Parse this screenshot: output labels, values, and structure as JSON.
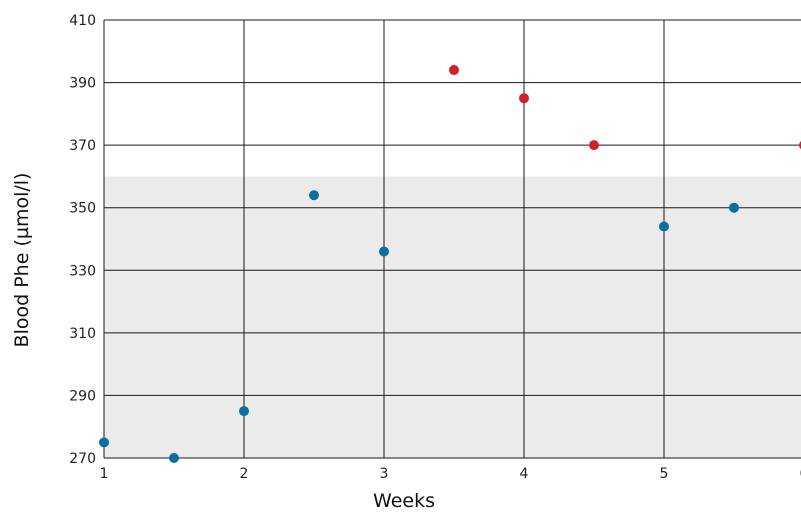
{
  "chart_data": {
    "type": "scatter",
    "title": "",
    "xlabel": "Weeks",
    "ylabel": "Blood Phe (µmol/l)",
    "xlim": [
      1,
      6
    ],
    "ylim": [
      270,
      410
    ],
    "x_ticks": [
      "1",
      "2",
      "3",
      "4",
      "5",
      "6"
    ],
    "y_ticks": [
      "270",
      "290",
      "310",
      "330",
      "350",
      "370",
      "390",
      "410"
    ],
    "grid": true,
    "legend": "none",
    "target_range": {
      "y_min": 270,
      "y_max": 360,
      "color": "#ebebeb"
    },
    "series": [
      {
        "color": "#0a6e9e",
        "points": [
          {
            "x": 1,
            "y": 275
          },
          {
            "x": 1.5,
            "y": 270
          },
          {
            "x": 2,
            "y": 285
          },
          {
            "x": 2.5,
            "y": 354
          },
          {
            "x": 3,
            "y": 336
          },
          {
            "x": 5,
            "y": 344
          },
          {
            "x": 5.5,
            "y": 350
          }
        ]
      },
      {
        "color": "#d0202a",
        "points": [
          {
            "x": 3.5,
            "y": 394
          },
          {
            "x": 4,
            "y": 385
          },
          {
            "x": 4.5,
            "y": 370
          },
          {
            "x": 6,
            "y": 370
          }
        ]
      }
    ]
  }
}
